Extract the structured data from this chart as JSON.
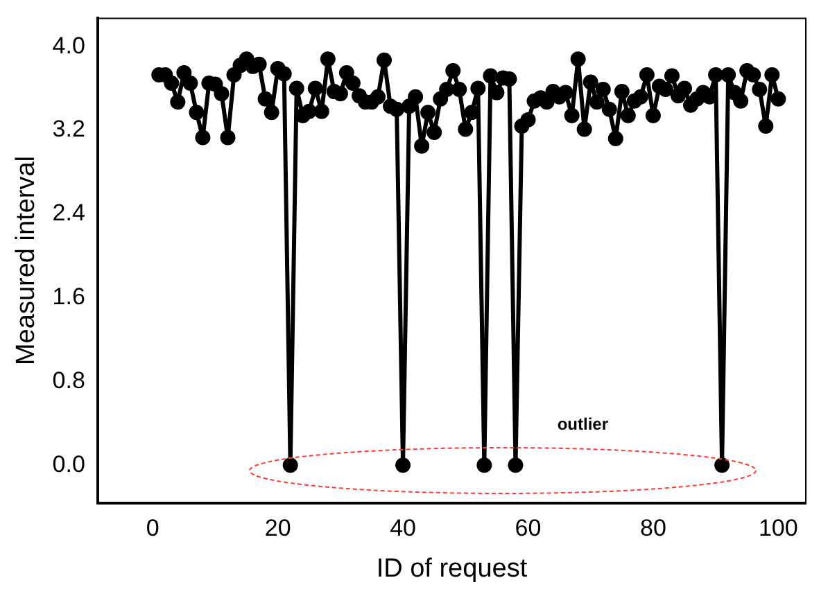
{
  "chart_data": {
    "type": "line",
    "xlabel": "ID of request",
    "ylabel": "Measured interval",
    "x": [
      1,
      2,
      3,
      4,
      5,
      6,
      7,
      8,
      9,
      10,
      11,
      12,
      13,
      14,
      15,
      16,
      17,
      18,
      19,
      20,
      21,
      22,
      23,
      24,
      25,
      26,
      27,
      28,
      29,
      30,
      31,
      32,
      33,
      34,
      35,
      36,
      37,
      38,
      39,
      40,
      41,
      42,
      43,
      44,
      45,
      46,
      47,
      48,
      49,
      50,
      51,
      52,
      53,
      54,
      55,
      56,
      57,
      58,
      59,
      60,
      61,
      62,
      63,
      64,
      65,
      66,
      67,
      68,
      69,
      70,
      71,
      72,
      73,
      74,
      75,
      76,
      77,
      78,
      79,
      80,
      81,
      82,
      83,
      84,
      85,
      86,
      87,
      88,
      89,
      90,
      91,
      92,
      93,
      94,
      95,
      96,
      97,
      98,
      99,
      100
    ],
    "series": [
      {
        "color": "#000000",
        "values": [
          3.73,
          3.73,
          3.65,
          3.47,
          3.75,
          3.65,
          3.37,
          3.13,
          3.65,
          3.64,
          3.55,
          3.13,
          3.73,
          3.82,
          3.88,
          3.81,
          3.83,
          3.5,
          3.37,
          3.79,
          3.74,
          0,
          3.6,
          3.34,
          3.38,
          3.6,
          3.38,
          3.88,
          3.57,
          3.55,
          3.75,
          3.65,
          3.53,
          3.47,
          3.47,
          3.52,
          3.87,
          3.43,
          3.4,
          0,
          3.43,
          3.52,
          3.05,
          3.37,
          3.18,
          3.5,
          3.59,
          3.77,
          3.59,
          3.21,
          3.37,
          3.6,
          0,
          3.72,
          3.56,
          3.7,
          3.69,
          0,
          3.24,
          3.3,
          3.48,
          3.51,
          3.47,
          3.57,
          3.52,
          3.56,
          3.34,
          3.88,
          3.21,
          3.66,
          3.47,
          3.59,
          3.4,
          3.12,
          3.57,
          3.34,
          3.48,
          3.52,
          3.73,
          3.34,
          3.62,
          3.59,
          3.72,
          3.53,
          3.6,
          3.44,
          3.5,
          3.56,
          3.52,
          3.73,
          0,
          3.73,
          3.56,
          3.48,
          3.77,
          3.73,
          3.59,
          3.24,
          3.73,
          3.5
        ]
      }
    ],
    "xlim": [
      -8.8,
      104.4
    ],
    "xticks": [
      0,
      20,
      40,
      60,
      80,
      100
    ],
    "ylim": [
      -0.36,
      4.27
    ],
    "yticks": [
      {
        "value": 0,
        "label": "0.0"
      },
      0.8,
      1.6,
      2.4,
      3.2,
      {
        "value": 4,
        "label": "4.0"
      }
    ],
    "annotations": [
      "outlier"
    ],
    "marker": "circle",
    "line_style": "solid",
    "grid": false,
    "legend": false
  }
}
